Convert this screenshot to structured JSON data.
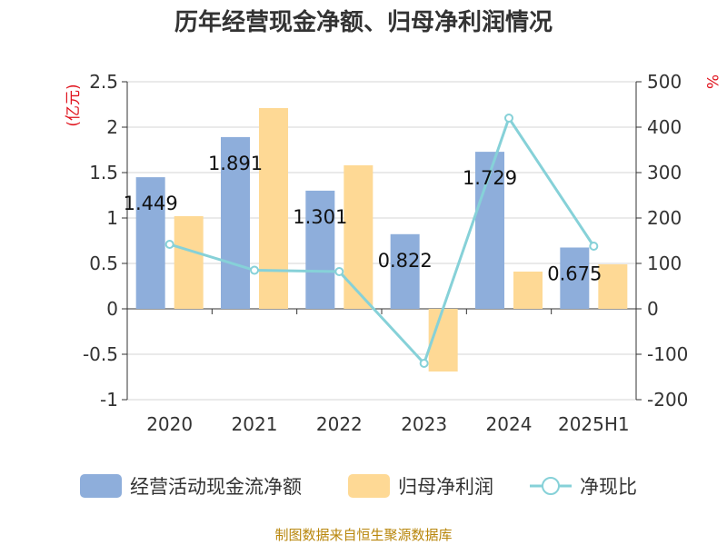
{
  "chart_data": {
    "type": "bar",
    "title": "历年经营现金净额、归母净利润情况",
    "categories": [
      "2020",
      "2021",
      "2022",
      "2023",
      "2024",
      "2025H1"
    ],
    "left_axis": {
      "unit": "(亿元)",
      "ylim": [
        -1,
        2.5
      ],
      "ticks": [
        "2.5",
        "2",
        "1.5",
        "1",
        "0.5",
        "0",
        "-0.5",
        "-1"
      ]
    },
    "right_axis": {
      "unit": "%",
      "ylim": [
        -200,
        500
      ],
      "ticks": [
        "500",
        "400",
        "300",
        "200",
        "100",
        "0",
        "-100",
        "-200"
      ]
    },
    "series": [
      {
        "name": "经营活动现金流净额",
        "type": "bar",
        "axis": "left",
        "color": "#8eaedb",
        "values": [
          1.449,
          1.891,
          1.301,
          0.822,
          1.729,
          0.675
        ],
        "labels": [
          "1.449",
          "1.891",
          "1.301",
          "0.822",
          "1.729",
          "0.675"
        ]
      },
      {
        "name": "归母净利润",
        "type": "bar",
        "axis": "left",
        "color": "#fed995",
        "values": [
          1.02,
          2.21,
          1.58,
          -0.69,
          0.41,
          0.49
        ]
      },
      {
        "name": "净现比",
        "type": "line",
        "axis": "right",
        "color": "#86d1d8",
        "values": [
          142,
          85,
          82,
          -120,
          420,
          138
        ]
      }
    ],
    "grid": true,
    "legend_position": "bottom",
    "source": "制图数据来自恒生聚源数据库"
  }
}
